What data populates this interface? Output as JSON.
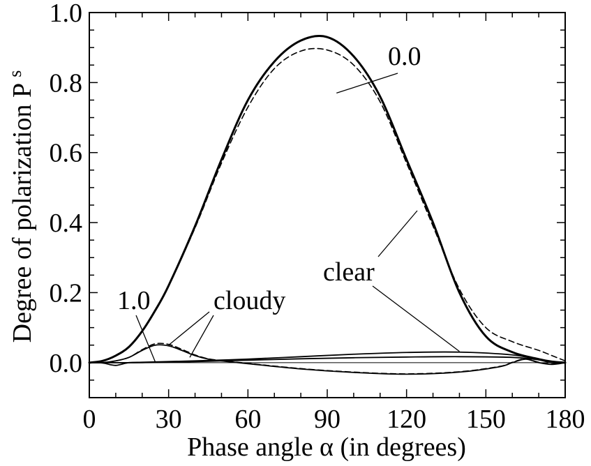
{
  "chart_data": {
    "type": "line",
    "xlabel": "Phase angle α (in degrees)",
    "ylabel": "Degree of polarization P",
    "ylabel_sub": "s",
    "xlim": [
      0,
      180
    ],
    "ylim": [
      -0.1,
      1.0
    ],
    "xticks": [
      0,
      30,
      60,
      90,
      120,
      150,
      180
    ],
    "yticks": [
      0.0,
      0.2,
      0.4,
      0.6,
      0.8,
      1.0
    ],
    "ytick_labels": [
      "0.0",
      "0.2",
      "0.4",
      "0.6",
      "0.8",
      "1.0"
    ],
    "grid": false,
    "series": [
      {
        "style": "solid-thick",
        "x": [
          0,
          5,
          10,
          15,
          20,
          25,
          30,
          40,
          50,
          60,
          70,
          80,
          90,
          100,
          110,
          120,
          130,
          140,
          150,
          160,
          170,
          175,
          180
        ],
        "y": [
          0.0,
          0.005,
          0.02,
          0.045,
          0.09,
          0.15,
          0.22,
          0.39,
          0.58,
          0.75,
          0.86,
          0.92,
          0.93,
          0.875,
          0.76,
          0.58,
          0.4,
          0.2,
          0.075,
          0.03,
          0.01,
          0.003,
          0.0
        ]
      },
      {
        "style": "dashed",
        "x": [
          0,
          5,
          10,
          15,
          20,
          25,
          30,
          40,
          50,
          60,
          70,
          80,
          90,
          100,
          110,
          120,
          130,
          140,
          150,
          160,
          170,
          175,
          180
        ],
        "y": [
          0.0,
          0.005,
          0.02,
          0.045,
          0.09,
          0.15,
          0.22,
          0.385,
          0.57,
          0.73,
          0.84,
          0.89,
          0.893,
          0.85,
          0.745,
          0.57,
          0.39,
          0.21,
          0.1,
          0.06,
          0.035,
          0.02,
          0.005
        ]
      },
      {
        "style": "solid",
        "x": [
          0,
          5,
          10,
          15,
          20,
          25,
          30,
          35,
          40,
          45,
          50,
          60,
          80,
          100,
          120,
          140,
          155,
          160,
          165,
          170,
          175,
          180
        ],
        "y": [
          0.0,
          0.0,
          0.005,
          0.015,
          0.035,
          0.05,
          0.048,
          0.035,
          0.02,
          0.01,
          0.005,
          -0.003,
          -0.018,
          -0.028,
          -0.033,
          -0.027,
          -0.012,
          0.0,
          0.01,
          0.0,
          -0.005,
          0.0
        ]
      },
      {
        "style": "dashed",
        "x": [
          0,
          5,
          10,
          15,
          20,
          25,
          30,
          35,
          40,
          45,
          50,
          60,
          80,
          100,
          120,
          140,
          155,
          160,
          165,
          170,
          175,
          180
        ],
        "y": [
          0.0,
          0.0,
          0.005,
          0.015,
          0.037,
          0.054,
          0.052,
          0.038,
          0.022,
          0.011,
          0.006,
          -0.002,
          -0.017,
          -0.027,
          -0.032,
          -0.026,
          -0.011,
          0.001,
          0.011,
          0.001,
          -0.004,
          0.0
        ]
      },
      {
        "style": "solid",
        "x": [
          0,
          5,
          8,
          10,
          12,
          15,
          20,
          25,
          30,
          40,
          60,
          80,
          100,
          120,
          140,
          160,
          170,
          175,
          180
        ],
        "y": [
          0.0,
          -0.001,
          -0.006,
          -0.008,
          -0.005,
          0.0,
          0.001,
          0.002,
          0.003,
          0.005,
          0.01,
          0.017,
          0.024,
          0.029,
          0.03,
          0.022,
          0.008,
          0.0,
          0.0
        ]
      },
      {
        "style": "solid",
        "x": [
          0,
          20,
          40,
          60,
          80,
          100,
          120,
          140,
          160,
          170,
          175,
          180
        ],
        "y": [
          0.0,
          0.0,
          0.003,
          0.007,
          0.011,
          0.014,
          0.016,
          0.017,
          0.015,
          0.008,
          0.003,
          0.0
        ]
      }
    ],
    "annotations": [
      {
        "text": "0.0",
        "point_x": 93.5,
        "point_y": 0.77
      },
      {
        "text": "clear",
        "point_x": 140,
        "point_y": 0.032
      },
      {
        "text": "cloudy",
        "point_x": 30,
        "point_y": 0.05
      },
      {
        "text": "cloudy",
        "point_x": 38,
        "point_y": 0.015
      },
      {
        "text": "1.0",
        "point_x": 25,
        "point_y": 0.001
      }
    ]
  }
}
